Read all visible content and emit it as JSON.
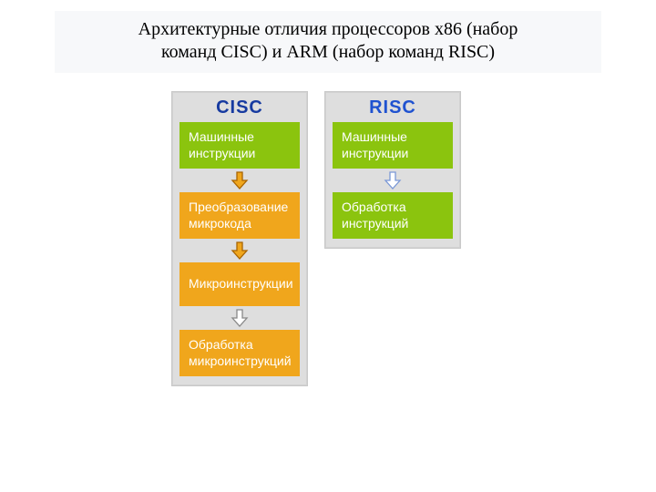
{
  "title_line1": "Архитектурные отличия процессоров x86 (набор",
  "title_line2": "команд CISC) и ARM (набор команд RISC)",
  "diagram": {
    "col_background": "#dedede",
    "columns": [
      {
        "header": "CISC",
        "header_color": "#163aa0",
        "width": 150,
        "boxes": [
          {
            "label": "Машинные инструкции",
            "bg": "#8bc40e"
          },
          {
            "label": "Преобразование микрокода",
            "bg": "#f0a61c"
          },
          {
            "label": "Микроинструкции",
            "bg": "#f0a61c"
          },
          {
            "label": "Обработка микроинструкций",
            "bg": "#f0a61c"
          }
        ],
        "arrows": [
          {
            "fill": "#f0a61c",
            "stroke": "#a86400"
          },
          {
            "fill": "#f0a61c",
            "stroke": "#a86400"
          },
          {
            "fill": "#ffffff",
            "stroke": "#888888"
          }
        ]
      },
      {
        "header": "RISC",
        "header_color": "#1f52d0",
        "width": 150,
        "boxes": [
          {
            "label": "Машинные инструкции",
            "bg": "#8bc40e"
          },
          {
            "label": "Обработка инструкций",
            "bg": "#8bc40e"
          }
        ],
        "arrows": [
          {
            "fill": "#ffffff",
            "stroke": "#7a98d6"
          }
        ]
      }
    ]
  }
}
